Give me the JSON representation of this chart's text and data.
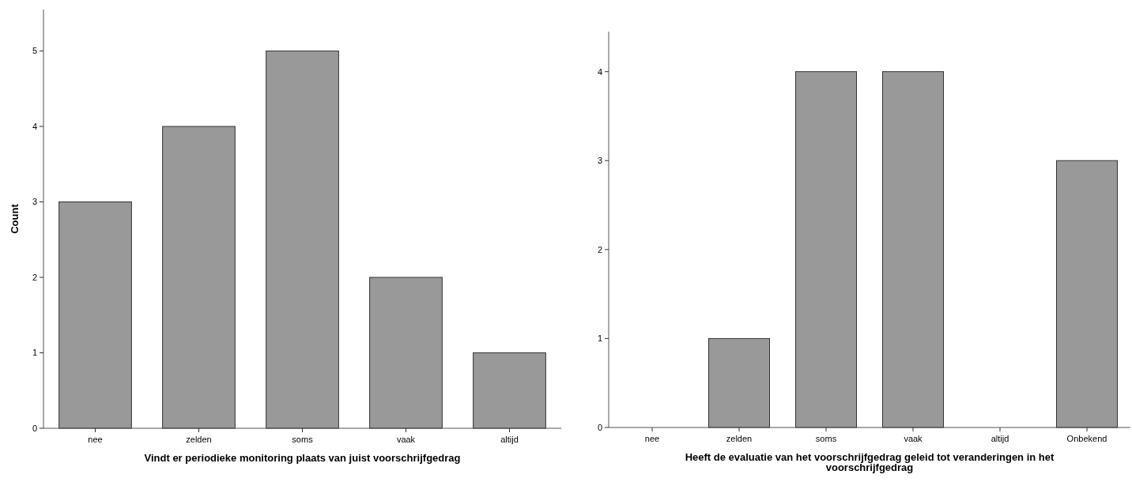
{
  "chart_data": [
    {
      "type": "bar",
      "xlabel": "Vindt er periodieke monitoring plaats van juist voorschrijfgedrag",
      "ylabel": "Count",
      "categories": [
        "nee",
        "zelden",
        "soms",
        "vaak",
        "altijd"
      ],
      "values": [
        3,
        4,
        5,
        2,
        1
      ],
      "color": "#999999",
      "ylim": [
        0,
        5.55
      ],
      "yticks": [
        0,
        1,
        2,
        3,
        4,
        5
      ]
    },
    {
      "type": "bar",
      "xlabel": "Heeft de evaluatie van het voorschrijfgedrag geleid tot veranderingen in het voorschrijfgedrag",
      "categories": [
        "nee",
        "zelden",
        "soms",
        "vaak",
        "altijd",
        "Onbekend"
      ],
      "values": [
        0,
        1,
        4,
        4,
        0,
        3
      ],
      "color": "#999999",
      "ylim": [
        0,
        4.45
      ],
      "yticks": [
        0,
        1,
        2,
        3,
        4
      ]
    }
  ]
}
